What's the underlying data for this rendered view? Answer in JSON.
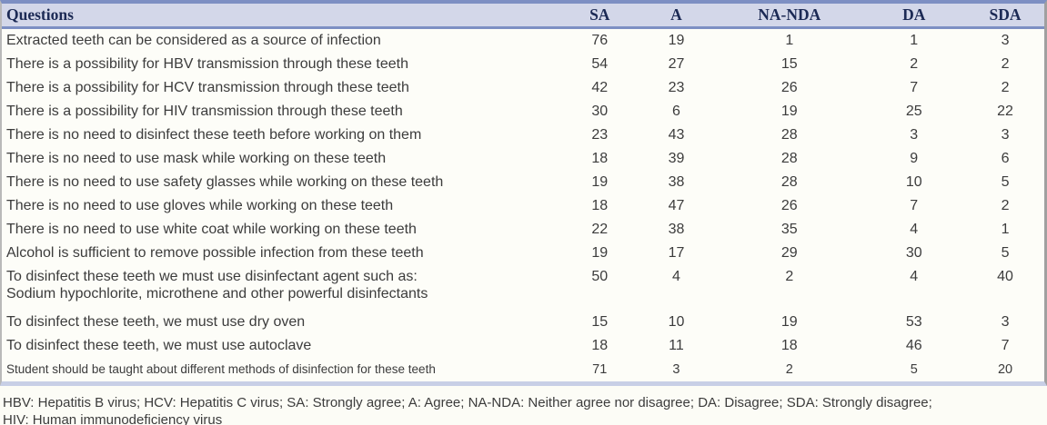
{
  "table": {
    "columns": [
      "Questions",
      "SA",
      "A",
      "NA-NDA",
      "DA",
      "SDA"
    ],
    "rows": [
      {
        "question": "Extracted teeth can be considered as a source of infection",
        "values": [
          76,
          19,
          1,
          1,
          3
        ]
      },
      {
        "question": "There is a possibility for HBV transmission through these teeth",
        "values": [
          54,
          27,
          15,
          2,
          2
        ]
      },
      {
        "question": "There is a possibility for HCV transmission through these teeth",
        "values": [
          42,
          23,
          26,
          7,
          2
        ]
      },
      {
        "question": "There is a possibility for HIV transmission through these teeth",
        "values": [
          30,
          6,
          19,
          25,
          22
        ]
      },
      {
        "question": "There is no need to disinfect these teeth before working on them",
        "values": [
          23,
          43,
          28,
          3,
          3
        ]
      },
      {
        "question": "There is no need to use mask while working on these teeth",
        "values": [
          18,
          39,
          28,
          9,
          6
        ]
      },
      {
        "question": "There is no need to use safety glasses while working on these teeth",
        "values": [
          19,
          38,
          28,
          10,
          5
        ]
      },
      {
        "question": "There is no need to use gloves while working on these teeth",
        "values": [
          18,
          47,
          26,
          7,
          2
        ]
      },
      {
        "question": "There is no need to use white coat while working on these teeth",
        "values": [
          22,
          38,
          35,
          4,
          1
        ]
      },
      {
        "question": "Alcohol is sufficient to remove possible infection from these teeth",
        "values": [
          19,
          17,
          29,
          30,
          5
        ]
      },
      {
        "question": "To disinfect these teeth we must use disinfectant agent such as:\nSodium hypochlorite, microthene and other powerful disinfectants",
        "values": [
          50,
          4,
          2,
          4,
          40
        ]
      },
      {
        "question": "To disinfect these teeth, we must use dry oven",
        "values": [
          15,
          10,
          19,
          53,
          3
        ]
      },
      {
        "question": "To disinfect these teeth, we must use autoclave",
        "values": [
          18,
          11,
          18,
          46,
          7
        ]
      },
      {
        "question": "Student should be taught about different methods of disinfection for these teeth",
        "values": [
          71,
          3,
          2,
          5,
          20
        ],
        "small": true
      }
    ]
  },
  "footnote": {
    "line1": "HBV: Hepatitis B virus; HCV: Hepatitis C virus; SA: Strongly agree; A: Agree; NA-NDA: Neither agree nor disagree; DA: Disagree; SDA: Strongly disagree;",
    "line2": "HIV: Human immunodeficiency virus"
  },
  "colors": {
    "rule_blue": "#7d8fc3",
    "header_bg": "#d3d7e9",
    "header_text": "#1c2a55",
    "bottom_band": "#c8cfe6",
    "body_text": "#3c3c3c",
    "page_bg": "#fcfcf6"
  }
}
